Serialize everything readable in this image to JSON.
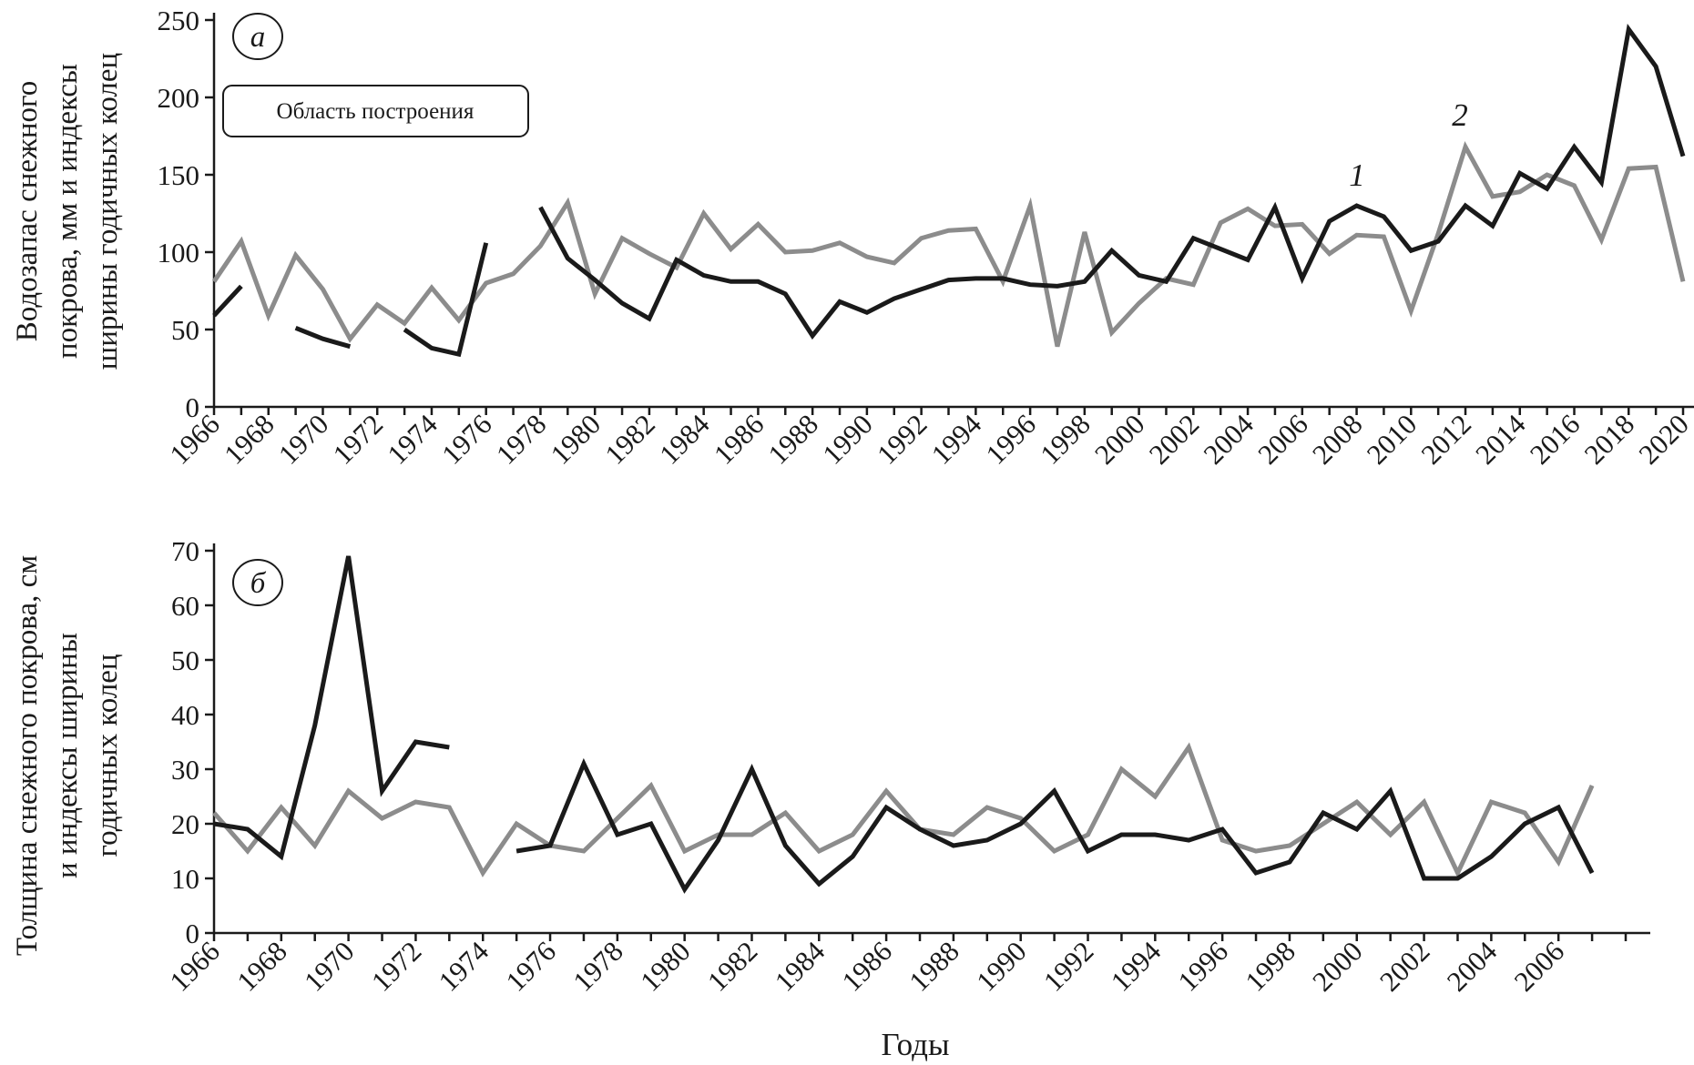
{
  "colors": {
    "series1": "#1a1a1a",
    "series2": "#8c8c8c",
    "axis": "#1a1a1a",
    "background": "#ffffff"
  },
  "xlabel": "Годы",
  "plot_area_label": "Область построения",
  "chart_data": [
    {
      "type": "line",
      "panel_label": "а",
      "ylabel_lines": [
        "Водозапас снежного",
        "покрова, мм и индексы",
        "ширины годичных колец"
      ],
      "ylim": [
        0,
        250
      ],
      "yticks": [
        0,
        50,
        100,
        150,
        200,
        250
      ],
      "xlim": [
        1966,
        2020
      ],
      "xticks": [
        1966,
        1968,
        1970,
        1972,
        1974,
        1976,
        1978,
        1980,
        1982,
        1984,
        1986,
        1988,
        1990,
        1992,
        1994,
        1996,
        1998,
        2000,
        2002,
        2004,
        2006,
        2008,
        2010,
        2012,
        2014,
        2016,
        2018,
        2020
      ],
      "annotations": [
        {
          "text": "1",
          "series": "1"
        },
        {
          "text": "2",
          "series": "2"
        }
      ],
      "series": [
        {
          "name": "1",
          "x": [
            1966,
            1967,
            1968,
            1969,
            1970,
            1971,
            1972,
            1973,
            1974,
            1975,
            1976,
            1977,
            1978,
            1979,
            1980,
            1981,
            1982,
            1983,
            1984,
            1985,
            1986,
            1987,
            1988,
            1989,
            1990,
            1991,
            1992,
            1993,
            1994,
            1995,
            1996,
            1997,
            1998,
            1999,
            2000,
            2001,
            2002,
            2003,
            2004,
            2005,
            2006,
            2007,
            2008,
            2009,
            2010,
            2011,
            2012,
            2013,
            2014,
            2015,
            2016,
            2017,
            2018,
            2019,
            2020
          ],
          "values": [
            59,
            78,
            null,
            51,
            44,
            39,
            null,
            50,
            38,
            34,
            106,
            null,
            129,
            96,
            82,
            67,
            57,
            95,
            85,
            81,
            81,
            73,
            46,
            68,
            61,
            70,
            76,
            82,
            83,
            83,
            79,
            78,
            81,
            101,
            85,
            81,
            109,
            102,
            95,
            129,
            83,
            120,
            130,
            123,
            101,
            107,
            130,
            117,
            151,
            141,
            168,
            145,
            244,
            220,
            162
          ]
        },
        {
          "name": "2",
          "x": [
            1966,
            1967,
            1968,
            1969,
            1970,
            1971,
            1972,
            1973,
            1974,
            1975,
            1976,
            1977,
            1978,
            1979,
            1980,
            1981,
            1982,
            1983,
            1984,
            1985,
            1986,
            1987,
            1988,
            1989,
            1990,
            1991,
            1992,
            1993,
            1994,
            1995,
            1996,
            1997,
            1998,
            1999,
            2000,
            2001,
            2002,
            2003,
            2004,
            2005,
            2006,
            2007,
            2008,
            2009,
            2010,
            2011,
            2012,
            2013,
            2014,
            2015,
            2016,
            2017,
            2018,
            2019,
            2020
          ],
          "values": [
            81,
            107,
            59,
            98,
            76,
            44,
            66,
            54,
            77,
            56,
            80,
            86,
            104,
            132,
            73,
            109,
            99,
            90,
            125,
            102,
            118,
            100,
            101,
            106,
            97,
            93,
            109,
            114,
            115,
            81,
            130,
            39,
            113,
            48,
            67,
            83,
            79,
            119,
            128,
            117,
            118,
            99,
            111,
            110,
            62,
            112,
            168,
            136,
            139,
            150,
            143,
            108,
            154,
            155,
            81
          ]
        }
      ]
    },
    {
      "type": "line",
      "panel_label": "б",
      "ylabel_lines": [
        "Толщина снежного покрова, см",
        "и индексы ширины",
        "годичных колец"
      ],
      "ylim": [
        0,
        70
      ],
      "yticks": [
        0,
        10,
        20,
        30,
        40,
        50,
        60,
        70
      ],
      "xlim": [
        1966,
        2008
      ],
      "xticks": [
        1966,
        1968,
        1970,
        1972,
        1974,
        1976,
        1978,
        1980,
        1982,
        1984,
        1986,
        1988,
        1990,
        1992,
        1994,
        1996,
        1998,
        2000,
        2002,
        2004,
        2006
      ],
      "series": [
        {
          "name": "1",
          "x": [
            1966,
            1967,
            1968,
            1969,
            1970,
            1971,
            1972,
            1973,
            1974,
            1975,
            1976,
            1977,
            1978,
            1979,
            1980,
            1981,
            1982,
            1983,
            1984,
            1985,
            1986,
            1987,
            1988,
            1989,
            1990,
            1991,
            1992,
            1993,
            1994,
            1995,
            1996,
            1997,
            1998,
            1999,
            2000,
            2001,
            2002,
            2003,
            2004,
            2005,
            2006,
            2007
          ],
          "values": [
            20,
            19,
            14,
            38,
            69,
            26,
            35,
            34,
            null,
            15,
            16,
            31,
            18,
            20,
            8,
            17,
            30,
            16,
            9,
            14,
            23,
            19,
            16,
            17,
            20,
            26,
            15,
            18,
            18,
            17,
            19,
            11,
            13,
            22,
            19,
            26,
            10,
            10,
            14,
            20,
            23,
            11
          ]
        },
        {
          "name": "2",
          "x": [
            1966,
            1967,
            1968,
            1969,
            1970,
            1971,
            1972,
            1973,
            1974,
            1975,
            1976,
            1977,
            1978,
            1979,
            1980,
            1981,
            1982,
            1983,
            1984,
            1985,
            1986,
            1987,
            1988,
            1989,
            1990,
            1991,
            1992,
            1993,
            1994,
            1995,
            1996,
            1997,
            1998,
            1999,
            2000,
            2001,
            2002,
            2003,
            2004,
            2005,
            2006,
            2007
          ],
          "values": [
            22,
            15,
            23,
            16,
            26,
            21,
            24,
            23,
            11,
            20,
            16,
            15,
            21,
            27,
            15,
            18,
            18,
            22,
            15,
            18,
            26,
            19,
            18,
            23,
            21,
            15,
            18,
            30,
            25,
            34,
            17,
            15,
            16,
            20,
            24,
            18,
            24,
            11,
            24,
            22,
            13,
            27
          ]
        }
      ]
    }
  ]
}
